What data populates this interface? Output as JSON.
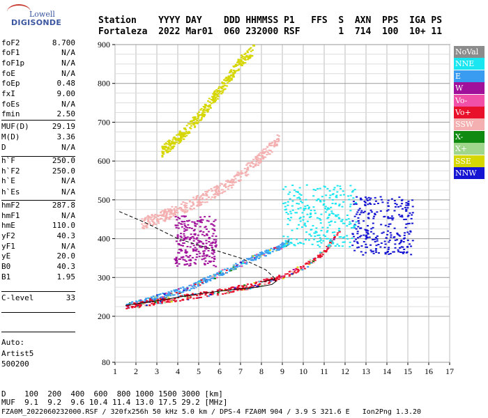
{
  "logo": {
    "brand_top": "Lowell",
    "brand_bottom": "DIGISONDE"
  },
  "header": {
    "line1": "Station    YYYY DAY    DDD HHMMSS P1   FFS  S  AXN  PPS  IGA PS",
    "line2": "Fortaleza  2022 Mar01  060 232000 RSF       1  714  100  10+ 11"
  },
  "params": [
    {
      "key": "foF2",
      "value": "8.700"
    },
    {
      "key": "foF1",
      "value": "N/A"
    },
    {
      "key": "foF1p",
      "value": "N/A"
    },
    {
      "key": "foE",
      "value": "N/A"
    },
    {
      "key": "foEp",
      "value": "0.48"
    },
    {
      "key": "fxI",
      "value": "9.00"
    },
    {
      "key": "foEs",
      "value": "N/A"
    },
    {
      "key": "fmin",
      "value": "2.50"
    },
    {
      "key": "MUF(D)",
      "value": "29.19"
    },
    {
      "key": "M(D)",
      "value": "3.36"
    },
    {
      "key": "D",
      "value": "N/A"
    },
    {
      "key": "h`F",
      "value": "250.0"
    },
    {
      "key": "h`F2",
      "value": "250.0"
    },
    {
      "key": "h`E",
      "value": "N/A"
    },
    {
      "key": "h`Es",
      "value": "N/A"
    },
    {
      "key": "hmF2",
      "value": "287.8"
    },
    {
      "key": "hmF1",
      "value": "N/A"
    },
    {
      "key": "hmE",
      "value": "110.0"
    },
    {
      "key": "yF2",
      "value": "40.3"
    },
    {
      "key": "yF1",
      "value": "N/A"
    },
    {
      "key": "yE",
      "value": "20.0"
    },
    {
      "key": "B0",
      "value": "40.3"
    },
    {
      "key": "B1",
      "value": "1.95"
    },
    {
      "key": "C-level",
      "value": "33"
    }
  ],
  "auto": [
    "Auto:",
    "Artist5",
    "500200"
  ],
  "footer": {
    "line1": "D    100  200  400  600  800 1000 1500 3000 [km]",
    "line2": "MUF  9.1  9.2  9.6 10.4 11.4 13.0 17.5 29.2 [MHz]",
    "line3": "FZA0M_2022060232000.RSF / 320fx256h 50 kHz 5.0 km / DPS-4 FZA0M 904 / 3.9 S 321.6 E   Ion2Png 1.3.20"
  },
  "chart_data": {
    "type": "scatter",
    "xlim": [
      1,
      17
    ],
    "xticks": [
      1,
      2,
      3,
      4,
      5,
      6,
      7,
      8,
      9,
      10,
      11,
      12,
      13,
      14,
      15,
      16,
      17
    ],
    "ylim": [
      80,
      900
    ],
    "yticks": [
      80,
      200,
      300,
      400,
      500,
      600,
      700,
      800,
      900
    ],
    "grid": true,
    "legend_position": "right",
    "legend": [
      {
        "name": "NoVal",
        "color": "#8c8c8c",
        "text_color": "#ffffff"
      },
      {
        "name": "NNE",
        "color": "#19e6f0",
        "text_color": "#ffffff"
      },
      {
        "name": "E",
        "color": "#3a9cf0",
        "text_color": "#ffffff"
      },
      {
        "name": "W",
        "color": "#a0109a",
        "text_color": "#ffffff"
      },
      {
        "name": "Vo-",
        "color": "#f050a8",
        "text_color": "#ffffff"
      },
      {
        "name": "Vo+",
        "color": "#e8102a",
        "text_color": "#ffffff"
      },
      {
        "name": "SSW",
        "color": "#f4b0b0",
        "text_color": "#ffffff"
      },
      {
        "name": "X-",
        "color": "#108a10",
        "text_color": "#ffffff"
      },
      {
        "name": "X+",
        "color": "#a0d68c",
        "text_color": "#ffffff"
      },
      {
        "name": "SSE",
        "color": "#d6d600",
        "text_color": "#ffffff"
      },
      {
        "name": "NNW",
        "color": "#1414d2",
        "text_color": "#ffffff"
      }
    ],
    "traces": [
      {
        "name": "F-trace main",
        "color": "#3a9cf0",
        "x": [
          1.5,
          2.5,
          3.5,
          4.5,
          5.5,
          6.5,
          7.5,
          8.5,
          9.0,
          9.3
        ],
        "y": [
          228,
          243,
          258,
          275,
          300,
          325,
          350,
          372,
          385,
          395
        ]
      },
      {
        "name": "F-trace X",
        "color": "#e8102a",
        "x": [
          1.5,
          3,
          4.5,
          6,
          7.5,
          9,
          10,
          10.7,
          11.3,
          11.7
        ],
        "y": [
          226,
          240,
          252,
          265,
          280,
          305,
          330,
          355,
          390,
          425
        ]
      },
      {
        "name": "Second hop",
        "color": "#f4b0b0",
        "x": [
          2.2,
          3.5,
          5,
          6.5,
          7.5,
          8.3,
          8.8
        ],
        "y": [
          440,
          465,
          500,
          545,
          590,
          630,
          660
        ]
      },
      {
        "name": "Third hop",
        "color": "#d6d600",
        "x": [
          3.2,
          4.2,
          5.2,
          6.2,
          7.0,
          7.6
        ],
        "y": [
          625,
          670,
          730,
          800,
          860,
          890
        ]
      },
      {
        "name": "NNW cluster",
        "color": "#1414d2",
        "x": [
          12.3,
          12.8,
          13.3,
          13.8,
          14.3,
          14.8,
          15.2
        ],
        "y": [
          460,
          410,
          440,
          470,
          400,
          450,
          420
        ]
      },
      {
        "name": "W spread",
        "color": "#a0109a",
        "x": [
          3.8,
          4.3,
          4.8,
          5.3,
          5.8
        ],
        "y": [
          400,
          385,
          420,
          370,
          395
        ]
      },
      {
        "name": "NNE spread",
        "color": "#19e6f0",
        "x": [
          9.0,
          9.5,
          10.5,
          11.0,
          12.5
        ],
        "y": [
          470,
          450,
          480,
          460,
          520
        ]
      }
    ],
    "profile": {
      "style": "solid",
      "x": [
        1.5,
        3,
        5,
        6.5,
        7.8,
        8.5,
        8.7,
        8.6,
        8.3,
        8.0
      ],
      "y": [
        228,
        240,
        258,
        268,
        275,
        282,
        290,
        296,
        292,
        288
      ]
    },
    "profile_dashed": {
      "style": "dashed",
      "x": [
        1.2,
        2.5,
        4,
        5.5,
        7,
        8.2,
        8.6,
        8.7
      ],
      "y": [
        470,
        440,
        400,
        375,
        350,
        320,
        300,
        290
      ]
    }
  }
}
